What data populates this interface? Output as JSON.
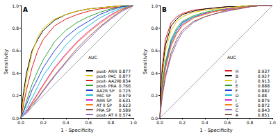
{
  "chart_data": [
    {
      "type": "line",
      "title": "A",
      "x_label": "1 - Specificity",
      "y_label": "Sensitivity",
      "legend_title": "AUC",
      "legend": "lower right",
      "grid": false,
      "xlim": [
        0,
        1
      ],
      "ylim": [
        0,
        1
      ],
      "xticks": [
        {
          "value": 0,
          "label": "0.0"
        },
        0.2,
        0.4,
        0.6,
        0.8,
        {
          "value": 1,
          "label": "1.0"
        }
      ],
      "yticks": [
        {
          "value": 0,
          "label": "0.0"
        },
        0.2,
        0.4,
        0.6,
        0.8,
        {
          "value": 1,
          "label": "1.0"
        }
      ],
      "x": [
        0,
        0.02,
        0.05,
        0.1,
        0.15,
        0.2,
        0.3,
        0.4,
        0.5,
        0.6,
        0.7,
        0.8,
        0.9,
        1
      ],
      "series": [
        {
          "name": "post- ARR",
          "auc": 0.877,
          "color": "#000000",
          "values": [
            0,
            0.2,
            0.4,
            0.6,
            0.7,
            0.78,
            0.87,
            0.92,
            0.95,
            0.97,
            0.98,
            0.99,
            1,
            1
          ]
        },
        {
          "name": "post- PAC",
          "auc": 0.877,
          "color": "#e6c800",
          "values": [
            0,
            0.15,
            0.35,
            0.58,
            0.72,
            0.8,
            0.88,
            0.92,
            0.95,
            0.97,
            0.98,
            0.99,
            1,
            1
          ]
        },
        {
          "name": "post- AA2R",
          "auc": 0.834,
          "color": "#e41a1c",
          "values": [
            0,
            0.1,
            0.25,
            0.45,
            0.6,
            0.7,
            0.82,
            0.88,
            0.92,
            0.95,
            0.97,
            0.98,
            0.99,
            1
          ]
        },
        {
          "name": "post- PRA",
          "auc": 0.766,
          "color": "#2ca02c",
          "values": [
            0,
            0.05,
            0.15,
            0.3,
            0.42,
            0.52,
            0.68,
            0.78,
            0.85,
            0.9,
            0.94,
            0.97,
            0.99,
            1
          ]
        },
        {
          "name": "AA2R SP",
          "auc": 0.725,
          "color": "#1f3fd6",
          "values": [
            0,
            0.05,
            0.12,
            0.25,
            0.35,
            0.45,
            0.6,
            0.72,
            0.8,
            0.86,
            0.92,
            0.96,
            0.99,
            1
          ]
        },
        {
          "name": "PAC SP",
          "auc": 0.679,
          "color": "#17becf",
          "values": [
            0,
            0.03,
            0.08,
            0.18,
            0.28,
            0.38,
            0.52,
            0.65,
            0.75,
            0.82,
            0.89,
            0.94,
            0.98,
            1
          ]
        },
        {
          "name": "ARR SP",
          "auc": 0.631,
          "color": "#d62ad6",
          "values": [
            0,
            0.02,
            0.06,
            0.14,
            0.22,
            0.3,
            0.45,
            0.57,
            0.68,
            0.77,
            0.85,
            0.92,
            0.97,
            1
          ]
        },
        {
          "name": "AT II SP",
          "auc": 0.623,
          "color": "#ff7f0e",
          "values": [
            0,
            0.02,
            0.05,
            0.13,
            0.21,
            0.29,
            0.44,
            0.56,
            0.67,
            0.76,
            0.84,
            0.91,
            0.97,
            1
          ]
        },
        {
          "name": "PRA SP",
          "auc": 0.589,
          "color": "#8c564b",
          "values": [
            0,
            0.02,
            0.05,
            0.12,
            0.18,
            0.25,
            0.38,
            0.5,
            0.62,
            0.72,
            0.81,
            0.89,
            0.96,
            1
          ]
        },
        {
          "name": "post- AT II",
          "auc": 0.574,
          "color": "#9467bd",
          "values": [
            0,
            0.02,
            0.04,
            0.1,
            0.17,
            0.24,
            0.37,
            0.49,
            0.6,
            0.7,
            0.8,
            0.88,
            0.95,
            1
          ]
        }
      ]
    },
    {
      "type": "line",
      "title": "B",
      "x_label": "1 - Specificity",
      "y_label": "Sensitivity",
      "legend_title": "AUC",
      "legend": "lower right",
      "grid": false,
      "xlim": [
        0,
        1
      ],
      "ylim": [
        0,
        1
      ],
      "xticks": [
        {
          "value": 0,
          "label": "0.0"
        },
        0.2,
        0.4,
        0.6,
        0.8,
        {
          "value": 1,
          "label": "1.0"
        }
      ],
      "yticks": [
        {
          "value": 0,
          "label": "0.0"
        },
        0.2,
        0.4,
        0.6,
        0.8,
        {
          "value": 1,
          "label": "1.0"
        }
      ],
      "x": [
        0,
        0.02,
        0.05,
        0.1,
        0.15,
        0.2,
        0.3,
        0.4,
        0.5,
        0.6,
        0.7,
        0.8,
        0.9,
        1
      ],
      "series": [
        {
          "name": "H",
          "auc": 0.937,
          "color": "#e41a1c",
          "values": [
            0,
            0.45,
            0.7,
            0.85,
            0.9,
            0.93,
            0.96,
            0.97,
            0.98,
            0.99,
            0.99,
            1,
            1,
            1
          ]
        },
        {
          "name": "B",
          "auc": 0.927,
          "color": "#000000",
          "values": [
            0,
            0.4,
            0.65,
            0.82,
            0.88,
            0.92,
            0.95,
            0.97,
            0.98,
            0.99,
            0.99,
            1,
            1,
            1
          ]
        },
        {
          "name": "J",
          "auc": 0.913,
          "color": "#e6c800",
          "values": [
            0,
            0.35,
            0.6,
            0.78,
            0.86,
            0.9,
            0.94,
            0.96,
            0.97,
            0.98,
            0.99,
            1,
            1,
            1
          ]
        },
        {
          "name": "E",
          "auc": 0.888,
          "color": "#2ca02c",
          "values": [
            0,
            0.3,
            0.5,
            0.7,
            0.8,
            0.86,
            0.91,
            0.94,
            0.96,
            0.97,
            0.98,
            0.99,
            1,
            1
          ]
        },
        {
          "name": "F",
          "auc": 0.882,
          "color": "#1f3fd6",
          "values": [
            0,
            0.28,
            0.48,
            0.68,
            0.78,
            0.85,
            0.9,
            0.93,
            0.95,
            0.97,
            0.98,
            0.99,
            1,
            1
          ]
        },
        {
          "name": "D",
          "auc": 0.88,
          "color": "#17becf",
          "values": [
            0,
            0.27,
            0.47,
            0.67,
            0.78,
            0.84,
            0.9,
            0.93,
            0.95,
            0.97,
            0.98,
            0.99,
            1,
            1
          ]
        },
        {
          "name": "I",
          "auc": 0.875,
          "color": "#d62ad6",
          "values": [
            0,
            0.25,
            0.45,
            0.65,
            0.76,
            0.83,
            0.89,
            0.93,
            0.95,
            0.97,
            0.98,
            0.99,
            1,
            1
          ]
        },
        {
          "name": "G",
          "auc": 0.872,
          "color": "#ff7f0e",
          "values": [
            0,
            0.24,
            0.44,
            0.64,
            0.75,
            0.82,
            0.89,
            0.92,
            0.95,
            0.96,
            0.98,
            0.99,
            1,
            1
          ]
        },
        {
          "name": "C",
          "auc": 0.843,
          "color": "#9467bd",
          "values": [
            0,
            0.18,
            0.36,
            0.55,
            0.67,
            0.76,
            0.85,
            0.9,
            0.93,
            0.95,
            0.97,
            0.99,
            1,
            1
          ]
        },
        {
          "name": "A",
          "auc": 0.851,
          "color": "#8c564b",
          "values": [
            0,
            0.2,
            0.38,
            0.58,
            0.7,
            0.78,
            0.86,
            0.9,
            0.93,
            0.96,
            0.97,
            0.99,
            1,
            1
          ]
        }
      ]
    }
  ]
}
